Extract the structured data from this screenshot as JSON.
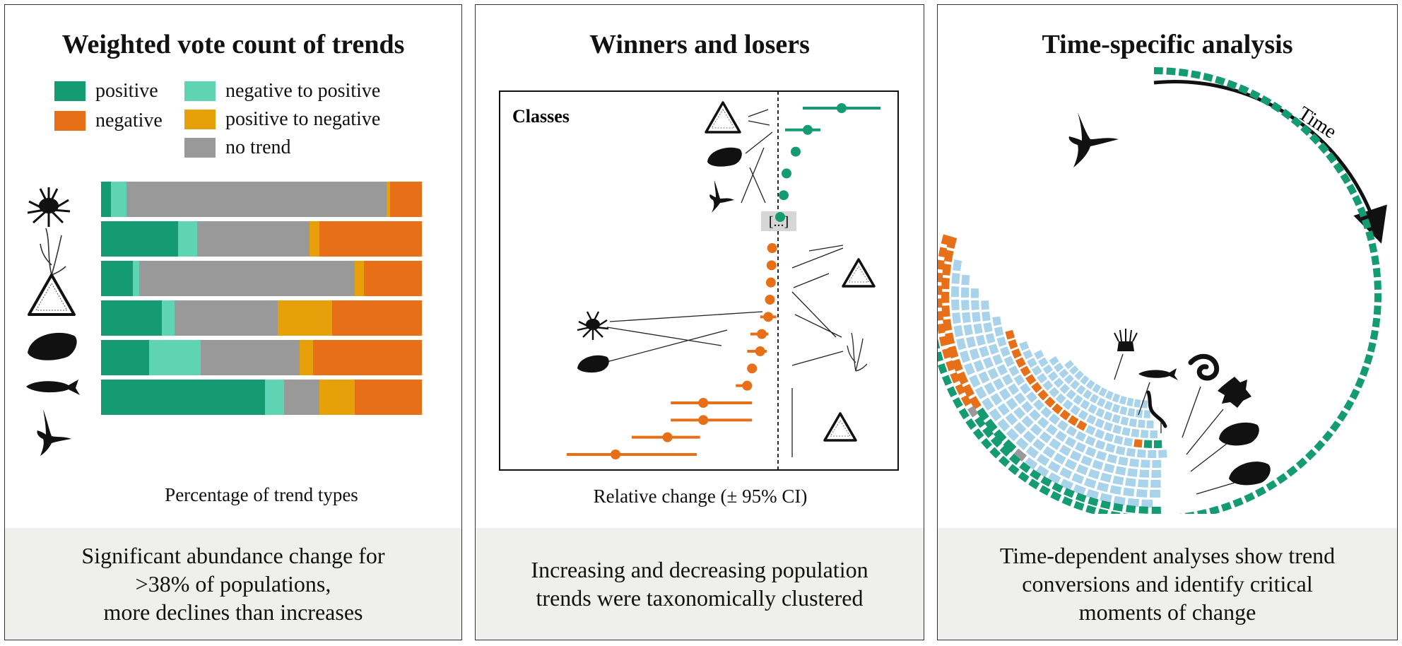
{
  "colors": {
    "positive": "#159b72",
    "negative": "#e66f17",
    "negative_to_positive": "#5fd4b3",
    "positive_to_negative": "#e6a00a",
    "no_trend": "#999999",
    "light_blue": "#a9d3ea",
    "footer_bg": "#efefed"
  },
  "panel1": {
    "title": "Weighted vote count of trends",
    "legend": [
      {
        "label": "positive",
        "key": "positive"
      },
      {
        "label": "negative",
        "key": "negative"
      },
      {
        "label": "negative to positive",
        "key": "negative_to_positive"
      },
      {
        "label": "positive to negative",
        "key": "positive_to_negative"
      },
      {
        "label": "no trend",
        "key": "no_trend"
      }
    ],
    "xlabel": "Percentage of trend types",
    "footer": "Significant abundance change for\n>38% of populations,\nmore declines than increases"
  },
  "chart_data": {
    "type": "bar",
    "stacked": true,
    "horizontal": true,
    "categories": [
      "crustacean",
      "plant",
      "diatom",
      "mollusc",
      "fish",
      "bird"
    ],
    "series": [
      {
        "name": "positive",
        "values": [
          3,
          24,
          10,
          19,
          15,
          51
        ]
      },
      {
        "name": "negative to positive",
        "values": [
          5,
          6,
          2,
          4,
          16,
          6
        ]
      },
      {
        "name": "no trend",
        "values": [
          81,
          35,
          67,
          32,
          31,
          11
        ]
      },
      {
        "name": "positive to negative",
        "values": [
          1,
          3,
          3,
          17,
          4,
          11
        ]
      },
      {
        "name": "negative",
        "values": [
          10,
          32,
          18,
          28,
          34,
          21
        ]
      }
    ],
    "xlabel": "Percentage of trend types",
    "xlim": [
      0,
      100
    ]
  },
  "panel2": {
    "title": "Winners and losers",
    "inner_label": "Classes",
    "ellipsis": "[...]",
    "xlabel": "Relative change (± 95% CI)",
    "footer": "Increasing and decreasing population\ntrends were taxonomically clustered",
    "points": [
      {
        "value": 0.9,
        "lo": 0.35,
        "hi": 1.45,
        "sign": "positive"
      },
      {
        "value": 0.42,
        "lo": 0.1,
        "hi": 0.6,
        "sign": "positive"
      },
      {
        "value": 0.25,
        "sign": "positive"
      },
      {
        "value": 0.12,
        "sign": "positive"
      },
      {
        "value": 0.08,
        "sign": "positive"
      },
      {
        "value": 0.03,
        "sign": "positive"
      },
      {
        "value": -0.18,
        "sign": "negative"
      },
      {
        "value": -0.2,
        "sign": "negative"
      },
      {
        "value": -0.22,
        "sign": "negative"
      },
      {
        "value": -0.25,
        "sign": "negative"
      },
      {
        "value": -0.3,
        "lo": -0.55,
        "hi": -0.05,
        "sign": "negative"
      },
      {
        "value": -0.5,
        "lo": -0.85,
        "hi": -0.3,
        "sign": "negative"
      },
      {
        "value": -0.55,
        "lo": -0.95,
        "hi": -0.35,
        "sign": "negative"
      },
      {
        "value": -0.8,
        "sign": "negative"
      },
      {
        "value": -0.95,
        "lo": -1.3,
        "hi": -0.8,
        "sign": "negative"
      },
      {
        "value": -2.3,
        "lo": -3.3,
        "hi": -0.8,
        "sign": "negative"
      },
      {
        "value": -2.3,
        "lo": -3.3,
        "hi": -0.8,
        "sign": "negative"
      },
      {
        "value": -3.4,
        "lo": -4.5,
        "hi": -2.4,
        "sign": "negative"
      },
      {
        "value": -5.0,
        "lo": -6.5,
        "hi": -2.5,
        "sign": "negative"
      }
    ]
  },
  "panel3": {
    "title": "Time-specific analysis",
    "time_label": "Time",
    "footer": "Time-dependent analyses show trend\nconversions and identify critical\nmoments of change"
  }
}
